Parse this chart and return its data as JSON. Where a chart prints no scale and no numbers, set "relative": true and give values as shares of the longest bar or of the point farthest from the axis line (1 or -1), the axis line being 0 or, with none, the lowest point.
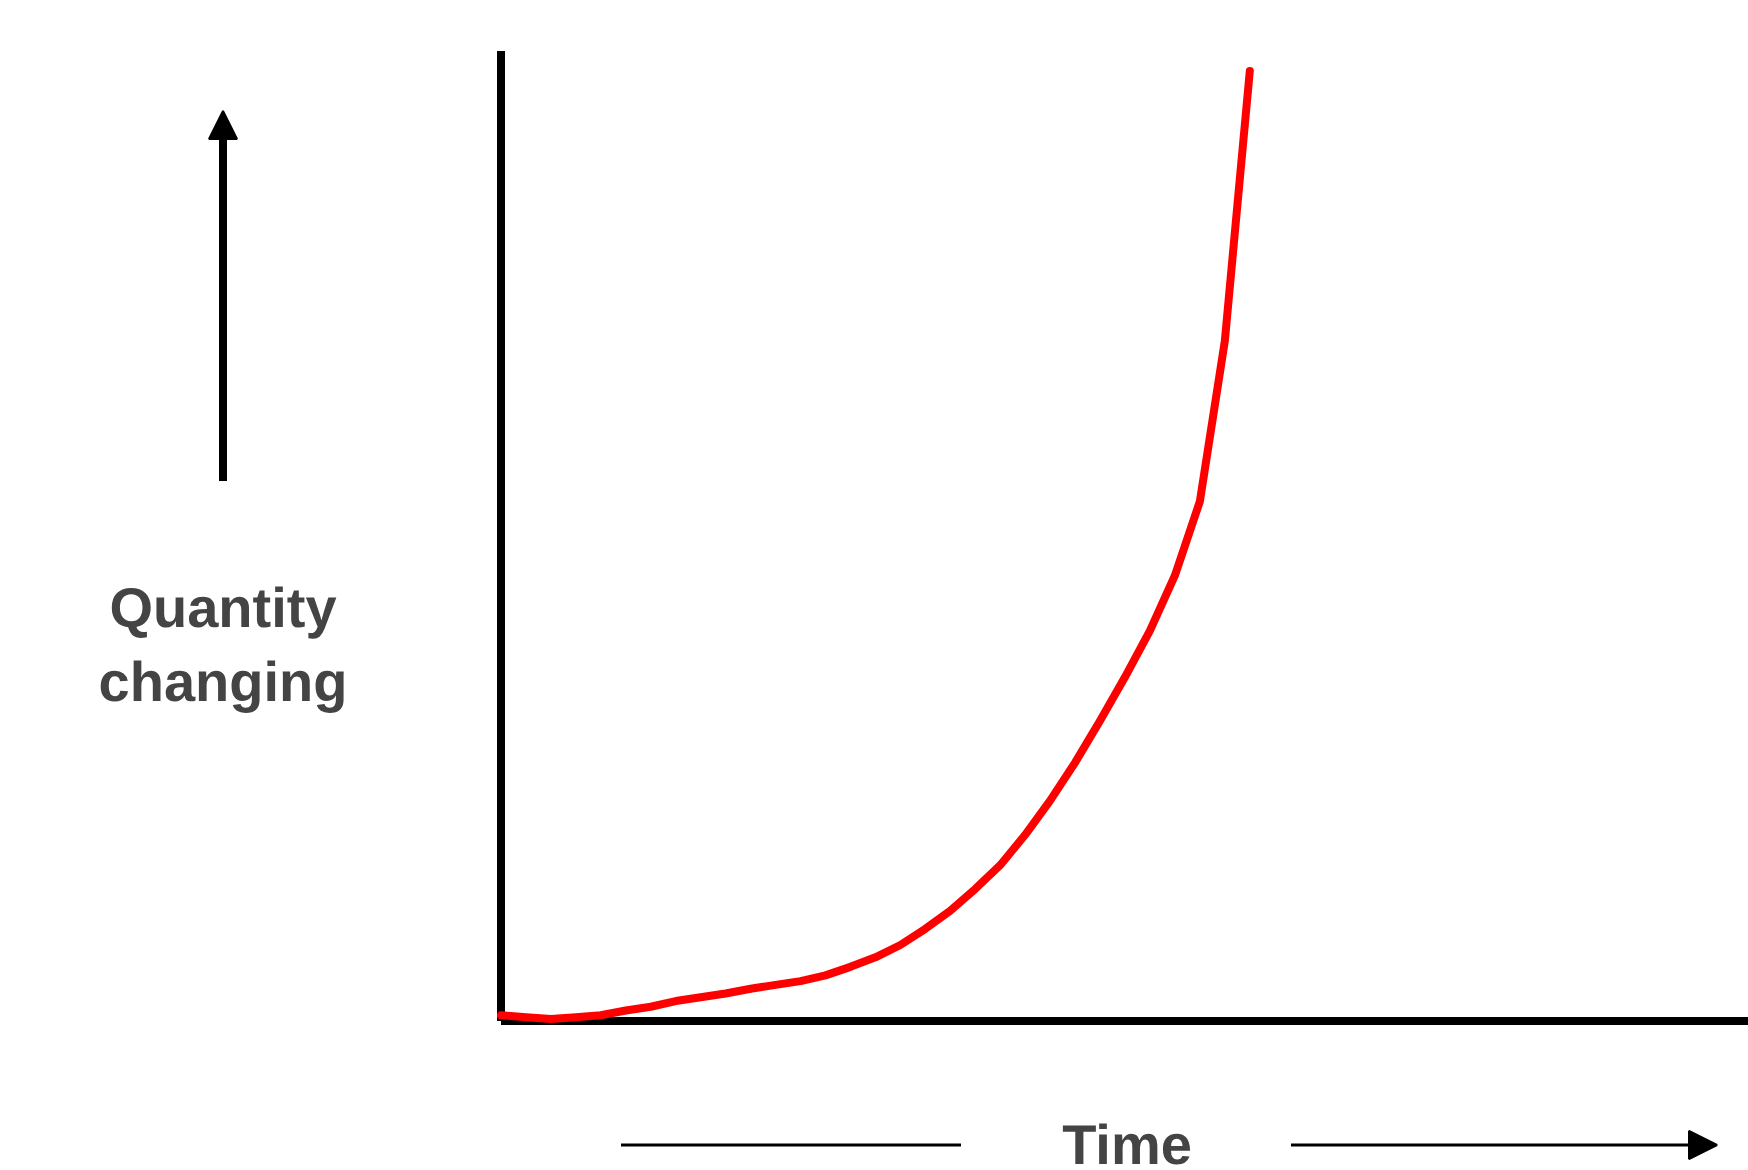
{
  "chart_data": {
    "type": "line",
    "xlabel": "Time",
    "ylabel": "Quantity\nchanging",
    "relative": true,
    "categories": [
      null,
      null,
      null,
      null,
      null,
      null,
      null,
      null,
      null,
      null,
      null,
      null,
      null,
      null,
      null,
      null,
      null,
      null,
      null,
      null,
      null,
      null,
      null,
      null,
      null,
      null,
      null,
      null,
      null,
      null,
      null,
      null,
      null,
      null,
      null,
      null,
      null,
      null,
      null,
      null,
      null,
      null,
      null,
      null,
      null,
      null,
      null,
      null,
      null,
      null,
      null
    ],
    "series": [
      {
        "color": "#ff0000",
        "values": [
          0.006,
          0.004,
          0.002,
          0.004,
          0.006,
          0.011,
          0.015,
          0.021,
          0.025,
          0.029,
          0.034,
          0.038,
          0.042,
          0.048,
          0.057,
          0.067,
          0.08,
          0.097,
          0.116,
          0.139,
          0.164,
          0.196,
          0.232,
          0.272,
          0.316,
          0.362,
          0.411,
          0.469,
          0.547,
          0.716,
          1,
          null,
          null,
          null,
          null,
          null,
          null,
          null,
          null,
          null,
          null,
          null,
          null,
          null,
          null,
          null,
          null,
          null,
          null,
          null,
          null
        ]
      }
    ]
  }
}
